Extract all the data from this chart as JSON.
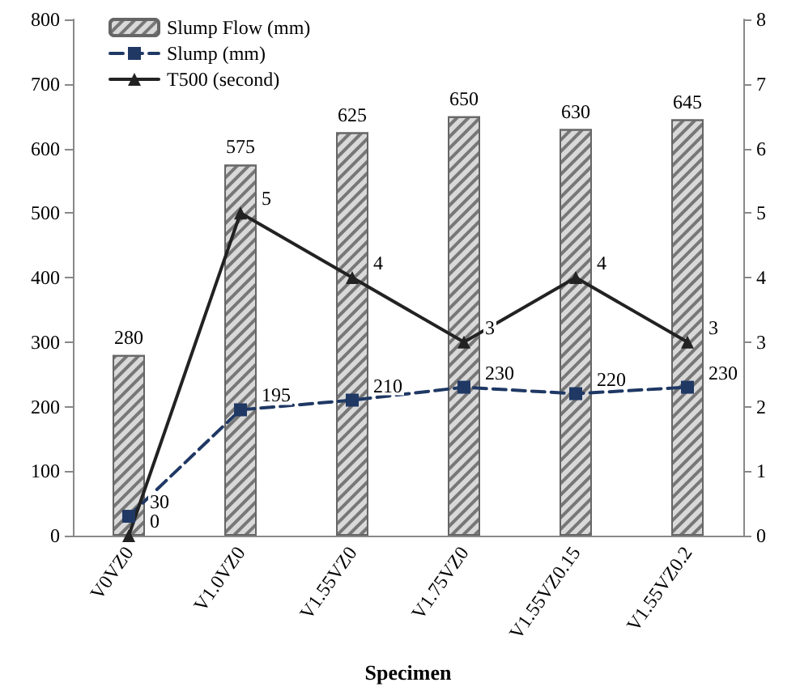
{
  "chart_data": {
    "type": "bar",
    "xlabel": "Specimen",
    "categories": [
      "V0VZ0",
      "V1.0VZ0",
      "V1.55VZ0",
      "V1.75VZ0",
      "V1.55VZ0.15",
      "V1.55VZ0.2"
    ],
    "series": [
      {
        "name": "Slump Flow (mm)",
        "color": "#d9d9d9",
        "values": [
          280,
          575,
          625,
          650,
          630,
          645
        ]
      },
      {
        "name": "Slump (mm)",
        "type": "line",
        "color": "#1f3864",
        "marker": "square",
        "line_style": "dashed",
        "values": [
          30,
          195,
          210,
          230,
          220,
          230
        ]
      },
      {
        "name": "T500 (second)",
        "type": "line",
        "axis": "y2",
        "color": "#222222",
        "marker": "triangle",
        "line_style": "solid",
        "values": [
          0,
          5,
          4,
          3,
          4,
          3
        ]
      }
    ],
    "ylim": [
      0,
      800
    ],
    "yticks": [
      0,
      100,
      200,
      300,
      400,
      500,
      600,
      700,
      800
    ],
    "y2lim": [
      0,
      8
    ],
    "y2ticks": [
      0,
      1,
      2,
      3,
      4,
      5,
      6,
      7,
      8
    ],
    "data_labels": true,
    "grid": false,
    "legend": "top left"
  }
}
